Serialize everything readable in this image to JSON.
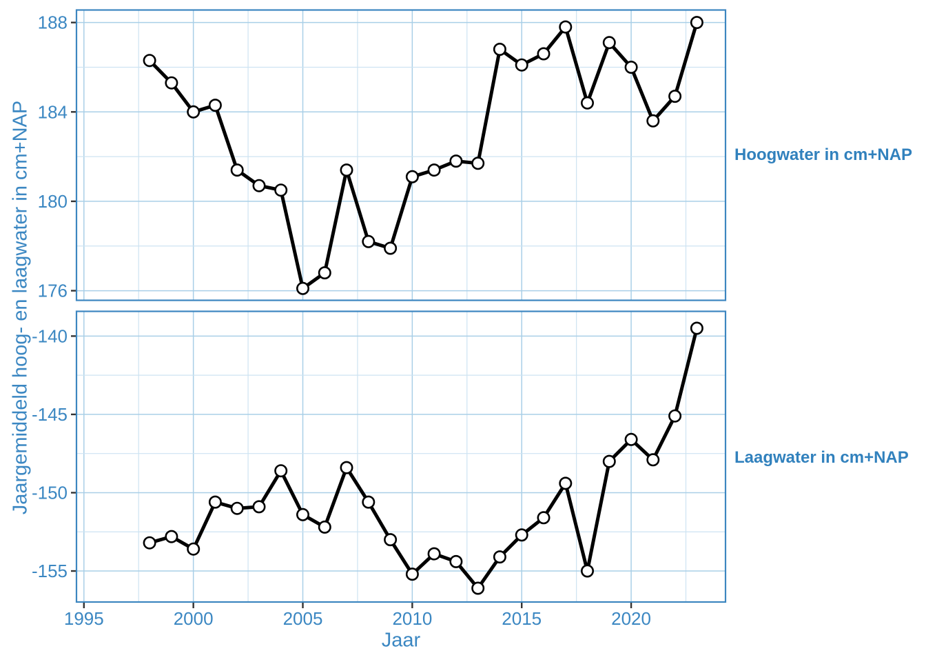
{
  "chart_data": {
    "type": "line",
    "title": "",
    "xlabel": "Jaar",
    "ylabel": "Jaargemiddeld hoog- en laagwater in cm+NAP",
    "x": [
      1998,
      1999,
      2000,
      2001,
      2002,
      2003,
      2004,
      2005,
      2006,
      2007,
      2008,
      2009,
      2010,
      2011,
      2012,
      2013,
      2014,
      2015,
      2016,
      2017,
      2018,
      2019,
      2020,
      2021,
      2022,
      2023
    ],
    "series": [
      {
        "name": "Hoogwater in cm+NAP",
        "panel": 0,
        "values": [
          186.3,
          185.3,
          184.0,
          184.3,
          181.4,
          180.7,
          180.5,
          176.1,
          176.8,
          181.4,
          178.2,
          177.9,
          181.1,
          181.4,
          181.8,
          181.7,
          186.8,
          186.1,
          186.6,
          187.8,
          184.4,
          187.1,
          186.0,
          183.6,
          184.7,
          188.0
        ]
      },
      {
        "name": "Laagwater in cm+NAP",
        "panel": 1,
        "values": [
          -153.2,
          -152.8,
          -153.6,
          -150.6,
          -151.0,
          -150.9,
          -148.6,
          -151.4,
          -152.2,
          -148.4,
          -150.6,
          -153.0,
          -155.2,
          -153.9,
          -154.4,
          -156.1,
          -154.1,
          -152.7,
          -151.6,
          -149.4,
          -155.0,
          -148.0,
          -146.6,
          -147.9,
          -145.1,
          -139.5
        ]
      }
    ],
    "panels": [
      {
        "strip_label": "Hoogwater in cm+NAP",
        "ylim": [
          175.57,
          188.56
        ],
        "yticks": [
          176,
          180,
          184,
          188
        ],
        "minor_yticks": [
          178,
          182,
          186
        ]
      },
      {
        "strip_label": "Laagwater in cm+NAP",
        "ylim": [
          -156.98,
          -138.42
        ],
        "yticks": [
          -155,
          -150,
          -145,
          -140
        ],
        "minor_yticks": [
          -152.5,
          -147.5,
          -142.5
        ]
      }
    ],
    "xticks": [
      1995,
      2000,
      2005,
      2010,
      2015,
      2020
    ],
    "minor_xticks": [
      1997.5,
      2002.5,
      2007.5,
      2012.5,
      2017.5,
      2022.5
    ],
    "xlim": [
      1994.66,
      2024.31
    ],
    "grid": true,
    "legend": "none",
    "style": {
      "line_color": "#000000",
      "marker_fill": "#ffffff",
      "marker_stroke": "#000000",
      "accent_text": "#3b87c2",
      "strip_text": "#3181bd",
      "panel_border": "#3c86c0",
      "grid_major": "#a9cfe7",
      "grid_minor": "#cde3f2",
      "tick_mark": "#333333",
      "background": "#ffffff"
    }
  }
}
